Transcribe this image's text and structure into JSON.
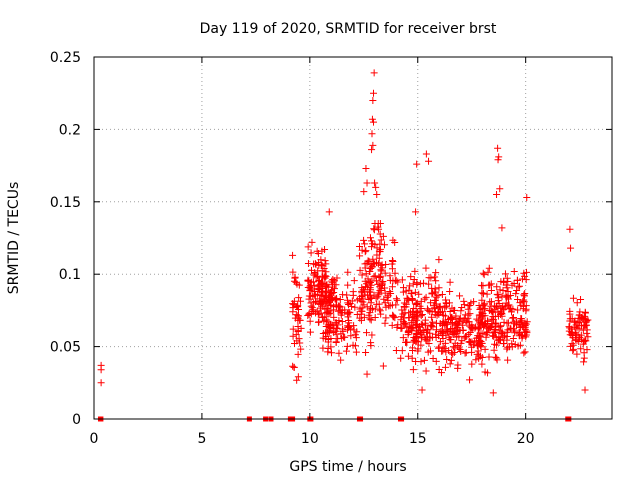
{
  "chart_data": {
    "type": "scatter",
    "title": "Day 119 of 2020, SRMTID for receiver brst",
    "xlabel": "GPS time / hours",
    "ylabel": "SRMTID / TECUs",
    "xlim": [
      0,
      24
    ],
    "ylim": [
      0,
      0.25
    ],
    "grid": true,
    "marker": "+",
    "series_color": "#ff0000",
    "x_ticks": [
      0,
      5,
      10,
      15,
      20
    ],
    "x_tick_labels": [
      "0",
      "5",
      "10",
      "15",
      "20"
    ],
    "y_ticks": [
      0,
      0.05,
      0.1,
      0.15,
      0.2,
      0.25
    ],
    "y_tick_labels": [
      "0",
      "0.05",
      "0.1",
      "0.15",
      "0.2",
      "0.25"
    ],
    "zero_points_x": [
      0.3,
      0.32,
      7.2,
      7.95,
      8.2,
      9.1,
      9.15,
      9.2,
      10.0,
      10.05,
      12.3,
      12.35,
      14.2,
      14.25,
      21.95,
      22.0
    ],
    "outliers": [
      {
        "x": 0.33,
        "y": 0.037
      },
      {
        "x": 0.33,
        "y": 0.034
      },
      {
        "x": 0.33,
        "y": 0.025
      },
      {
        "x": 9.2,
        "y": 0.113
      },
      {
        "x": 12.98,
        "y": 0.239
      },
      {
        "x": 12.95,
        "y": 0.225
      },
      {
        "x": 12.92,
        "y": 0.22
      },
      {
        "x": 12.9,
        "y": 0.207
      },
      {
        "x": 12.95,
        "y": 0.205
      },
      {
        "x": 12.88,
        "y": 0.197
      },
      {
        "x": 12.92,
        "y": 0.189
      },
      {
        "x": 12.86,
        "y": 0.186
      },
      {
        "x": 12.6,
        "y": 0.173
      },
      {
        "x": 12.65,
        "y": 0.163
      },
      {
        "x": 13.0,
        "y": 0.163
      },
      {
        "x": 13.05,
        "y": 0.16
      },
      {
        "x": 12.5,
        "y": 0.157
      },
      {
        "x": 13.1,
        "y": 0.155
      },
      {
        "x": 15.4,
        "y": 0.183
      },
      {
        "x": 14.95,
        "y": 0.176
      },
      {
        "x": 15.5,
        "y": 0.178
      },
      {
        "x": 18.7,
        "y": 0.187
      },
      {
        "x": 18.75,
        "y": 0.181
      },
      {
        "x": 18.72,
        "y": 0.179
      },
      {
        "x": 18.8,
        "y": 0.159
      },
      {
        "x": 20.05,
        "y": 0.153
      },
      {
        "x": 18.65,
        "y": 0.155
      },
      {
        "x": 10.1,
        "y": 0.122
      },
      {
        "x": 10.9,
        "y": 0.143
      },
      {
        "x": 14.9,
        "y": 0.143
      },
      {
        "x": 22.05,
        "y": 0.131
      },
      {
        "x": 22.08,
        "y": 0.118
      },
      {
        "x": 18.9,
        "y": 0.132
      },
      {
        "x": 12.65,
        "y": 0.031
      },
      {
        "x": 18.5,
        "y": 0.018
      },
      {
        "x": 22.75,
        "y": 0.02
      },
      {
        "x": 15.2,
        "y": 0.02
      },
      {
        "x": 16.1,
        "y": 0.032
      },
      {
        "x": 17.4,
        "y": 0.027
      }
    ],
    "clusters": [
      {
        "x_range": [
          9.2,
          9.6
        ],
        "y_center": 0.065,
        "y_spread": 0.022,
        "count": 45
      },
      {
        "x_range": [
          9.9,
          10.8
        ],
        "y_center": 0.09,
        "y_spread": 0.018,
        "count": 110
      },
      {
        "x_range": [
          10.5,
          11.3
        ],
        "y_center": 0.075,
        "y_spread": 0.02,
        "count": 70
      },
      {
        "x_range": [
          10.8,
          12.2
        ],
        "y_center": 0.07,
        "y_spread": 0.018,
        "count": 95
      },
      {
        "x_range": [
          12.3,
          12.9
        ],
        "y_center": 0.09,
        "y_spread": 0.025,
        "count": 70
      },
      {
        "x_range": [
          12.8,
          13.5
        ],
        "y_center": 0.1,
        "y_spread": 0.025,
        "count": 70
      },
      {
        "x_range": [
          13.4,
          14.1
        ],
        "y_center": 0.085,
        "y_spread": 0.025,
        "count": 40
      },
      {
        "x_range": [
          14.2,
          15.0
        ],
        "y_center": 0.07,
        "y_spread": 0.02,
        "count": 90
      },
      {
        "x_range": [
          14.9,
          16.0
        ],
        "y_center": 0.07,
        "y_spread": 0.022,
        "count": 110
      },
      {
        "x_range": [
          16.0,
          18.0
        ],
        "y_center": 0.062,
        "y_spread": 0.016,
        "count": 190
      },
      {
        "x_range": [
          17.8,
          19.0
        ],
        "y_center": 0.07,
        "y_spread": 0.02,
        "count": 130
      },
      {
        "x_range": [
          19.0,
          20.1
        ],
        "y_center": 0.072,
        "y_spread": 0.018,
        "count": 110
      },
      {
        "x_range": [
          22.0,
          22.9
        ],
        "y_center": 0.062,
        "y_spread": 0.016,
        "count": 75
      }
    ]
  }
}
